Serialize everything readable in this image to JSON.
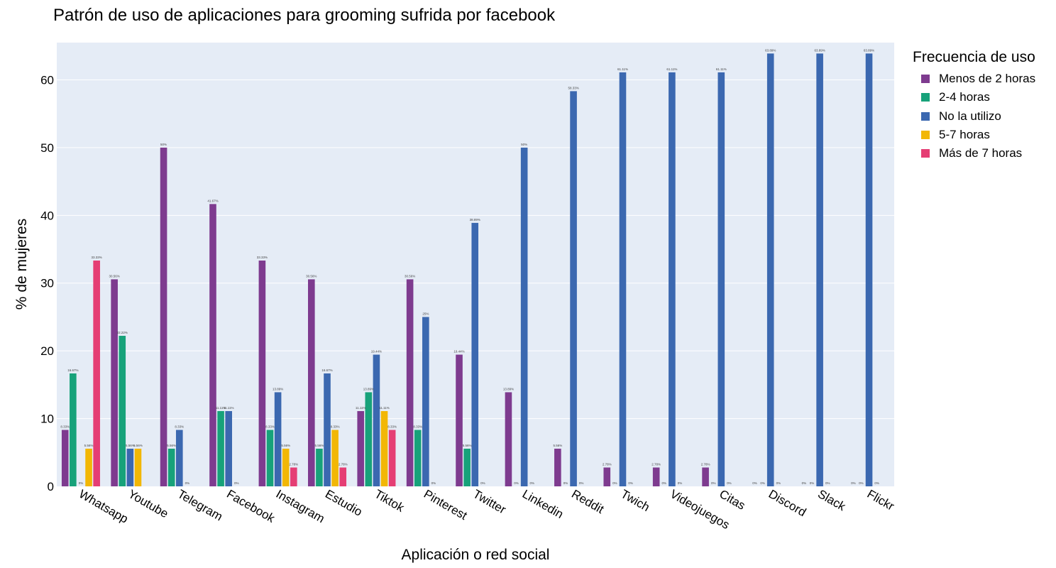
{
  "chart_data": {
    "type": "bar",
    "title": "Patrón de uso de aplicaciones para grooming sufrida por facebook",
    "xlabel": "Aplicación o red social",
    "ylabel": "% de mujeres",
    "ylim": [
      0,
      65.5
    ],
    "yticks": [
      0,
      10,
      20,
      30,
      40,
      50,
      60
    ],
    "grid": true,
    "legend_title": "Frecuencia de uso",
    "legend_position": "right",
    "categories": [
      "Whatsapp",
      "Youtube",
      "Telegram",
      "Facebook",
      "Instagram",
      "Estudio",
      "Tiktok",
      "Pinterest",
      "Twitter",
      "Linkedin",
      "Reddit",
      "Twich",
      "Videojuegos",
      "Citas",
      "Discord",
      "Slack",
      "Flickr"
    ],
    "series": [
      {
        "name": "Menos de 2 horas",
        "color": "#7e3b8f",
        "values": [
          8.33,
          30.56,
          50,
          41.67,
          33.33,
          30.56,
          11.11,
          30.56,
          19.44,
          13.89,
          5.56,
          2.78,
          2.78,
          2.78,
          0,
          0,
          0
        ],
        "labels": [
          "8.33%",
          "30.56%",
          "50%",
          "41.67%",
          "33.33%",
          "30.56%",
          "11.11%",
          "30.56%",
          "19.44%",
          "13.89%",
          "5.56%",
          "2.78%",
          "2.78%",
          "2.78%",
          "0%",
          "0%",
          "0%"
        ]
      },
      {
        "name": "2-4 horas",
        "color": "#17a27a",
        "values": [
          16.67,
          22.22,
          5.56,
          11.11,
          8.33,
          5.56,
          13.89,
          8.33,
          5.56,
          0,
          0,
          0,
          0,
          0,
          0,
          0,
          0
        ],
        "labels": [
          "16.67%",
          "22.22%",
          "5.56%",
          "11.11%",
          "8.33%",
          "5.56%",
          "13.89%",
          "8.33%",
          "5.56%",
          "0%",
          "0%",
          "0%",
          "0%",
          "0%",
          "0%",
          "0%",
          "0%"
        ]
      },
      {
        "name": "No la utilizo",
        "color": "#3b68b0",
        "values": [
          0,
          5.56,
          8.33,
          11.11,
          13.89,
          16.67,
          19.44,
          25,
          38.89,
          50,
          58.33,
          61.11,
          61.11,
          61.11,
          63.89,
          63.89,
          63.89
        ],
        "labels": [
          "0%",
          "5.56%",
          "8.33%",
          "11.11%",
          "13.89%",
          "16.67%",
          "19.44%",
          "25%",
          "38.89%",
          "50%",
          "58.33%",
          "61.11%",
          "61.11%",
          "61.11%",
          "63.89%",
          "63.89%",
          "63.89%"
        ]
      },
      {
        "name": "5-7 horas",
        "color": "#f2b705",
        "values": [
          5.56,
          5.56,
          0,
          0,
          5.56,
          8.33,
          11.11,
          0,
          0,
          0,
          0,
          0,
          0,
          0,
          0,
          0,
          0
        ],
        "labels": [
          "5.56%",
          "5.56%",
          "0%",
          "0%",
          "5.56%",
          "8.33%",
          "11.11%",
          "0%",
          "0%",
          "0%",
          "0%",
          "0%",
          "0%",
          "0%",
          "0%",
          "0%",
          "0%"
        ]
      },
      {
        "name": "Más de 7 horas",
        "color": "#e53e74",
        "values": [
          33.33,
          null,
          null,
          null,
          2.78,
          2.78,
          8.33,
          null,
          null,
          null,
          null,
          null,
          null,
          null,
          null,
          null,
          null
        ],
        "labels": [
          "33.33%",
          null,
          null,
          null,
          "2.78%",
          "2.78%",
          "8.33%",
          null,
          null,
          null,
          null,
          null,
          null,
          null,
          null,
          null,
          null
        ]
      }
    ]
  }
}
